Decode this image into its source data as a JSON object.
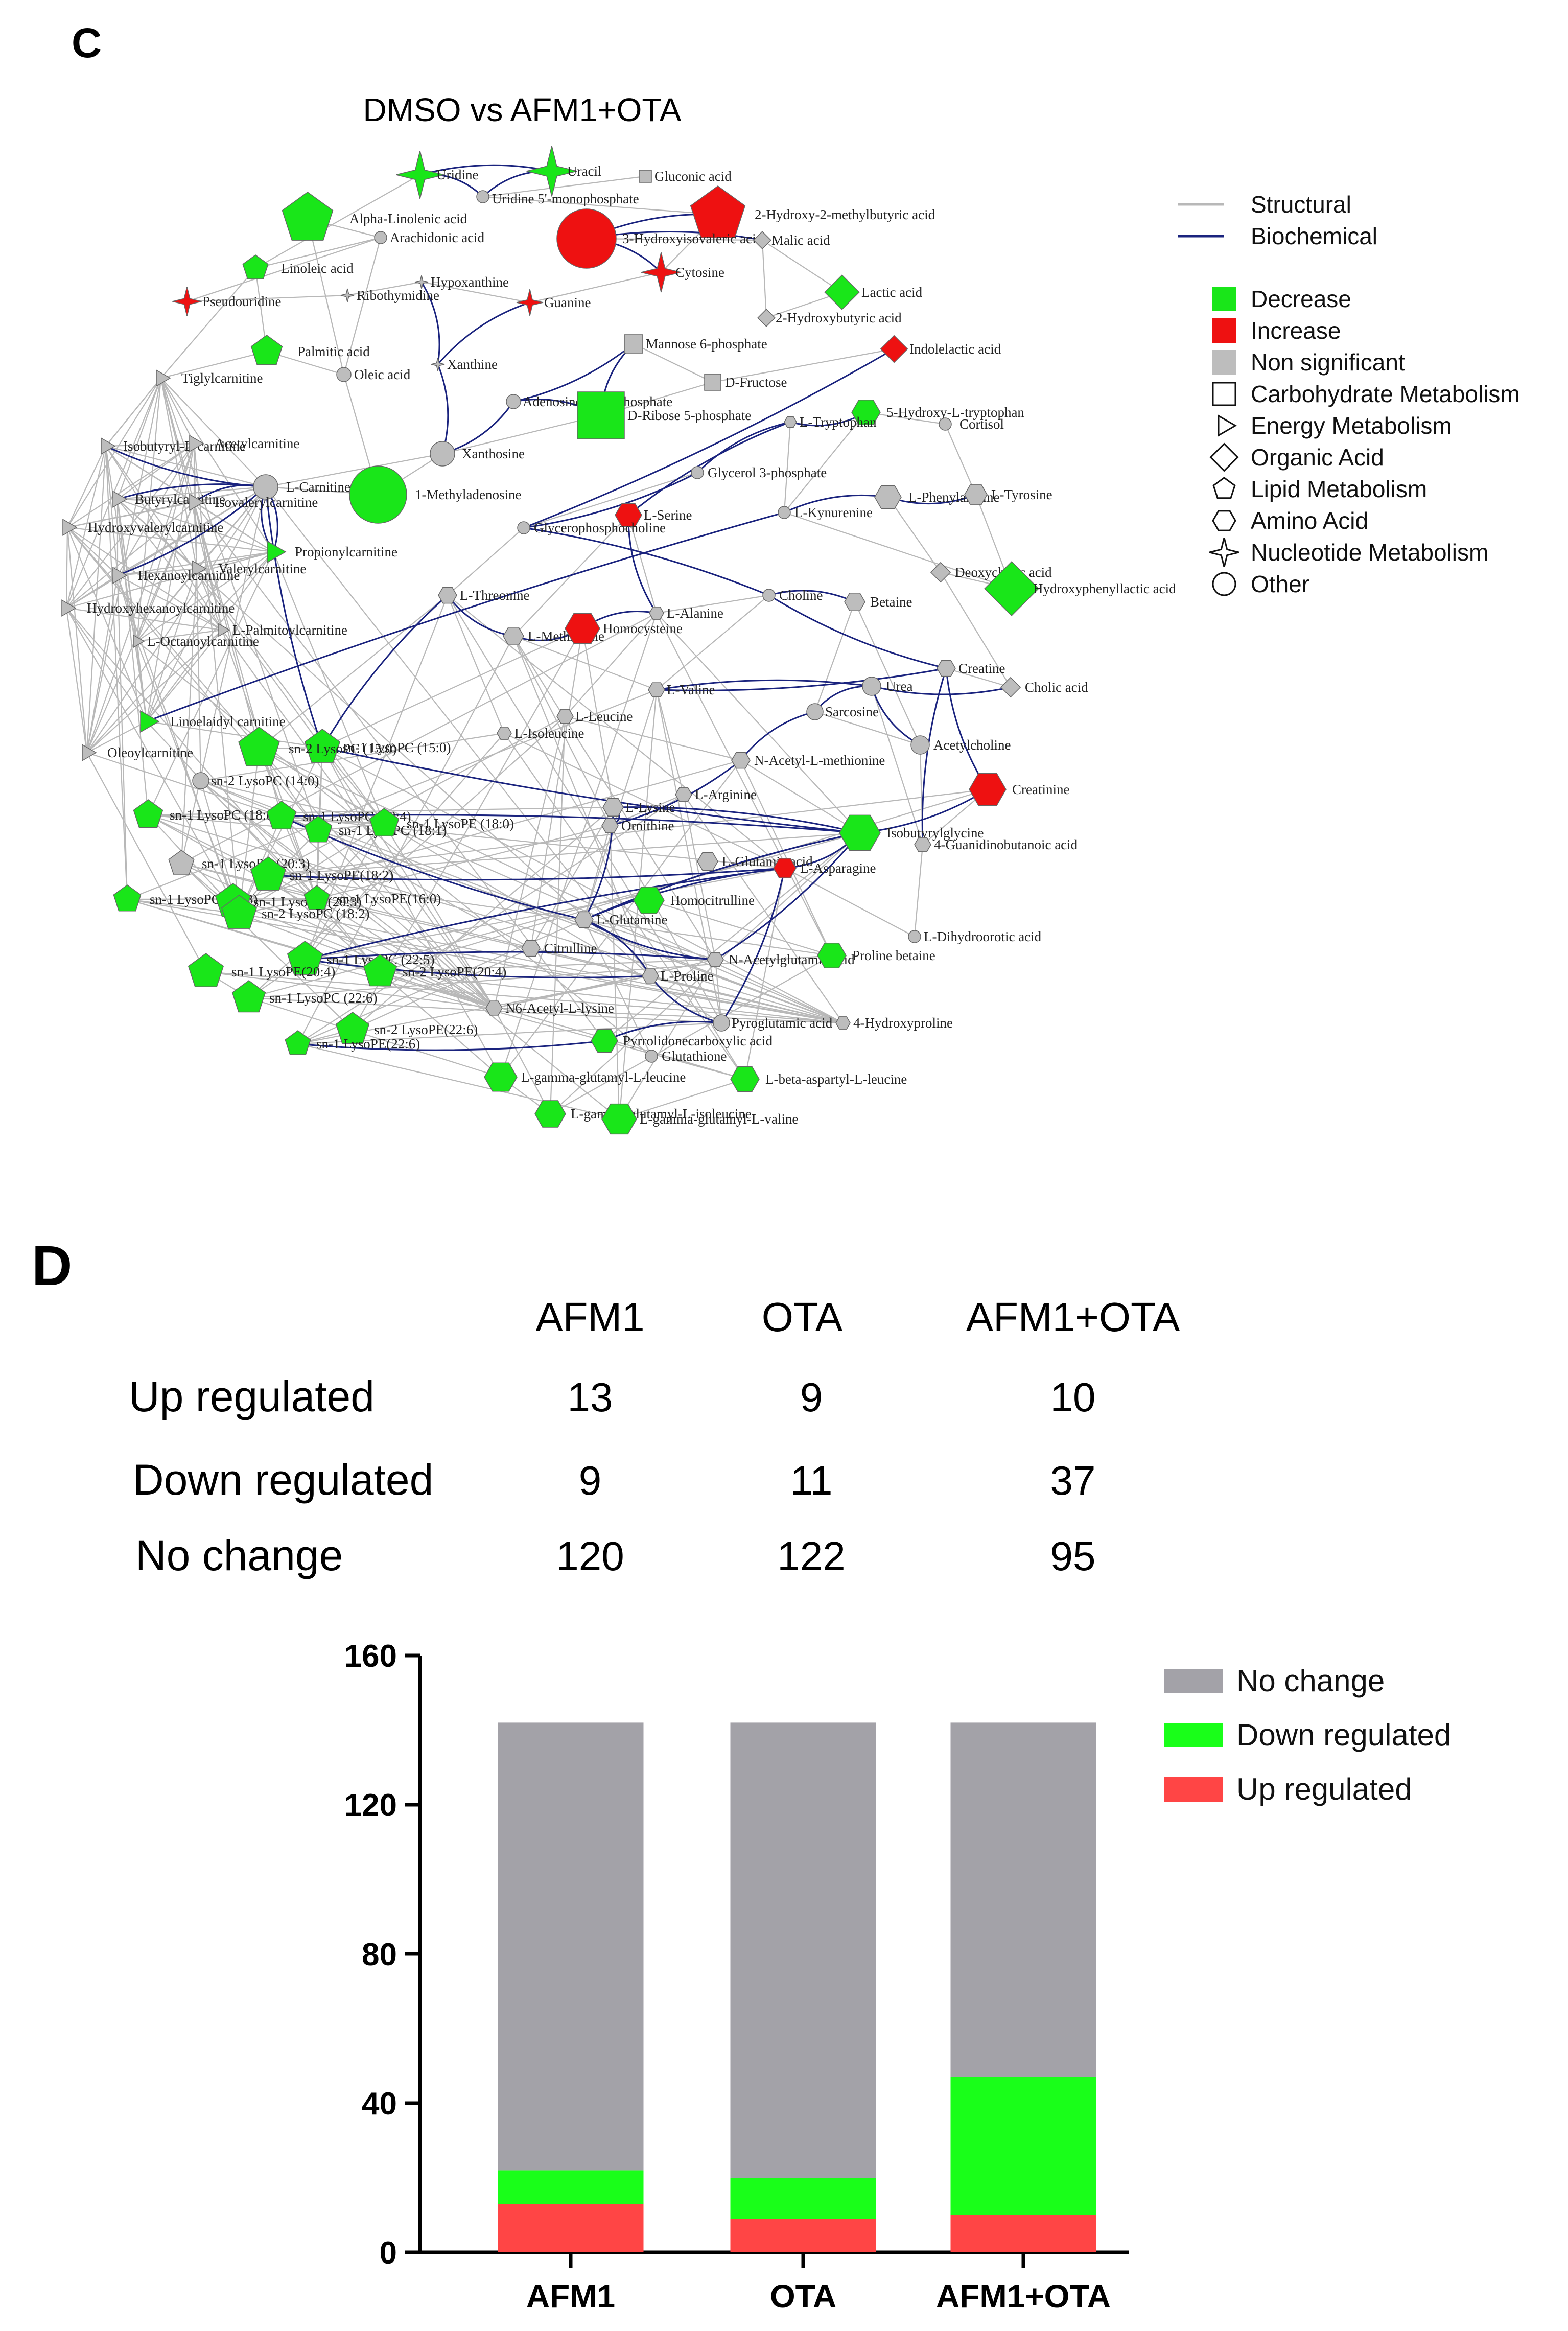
{
  "panel_c": {
    "letter": "C",
    "title": "DMSO vs AFM1+OTA",
    "legend": {
      "edges": [
        {
          "label": "Structural",
          "color": "#b8b8b8"
        },
        {
          "label": "Biochemical",
          "color": "#1a237e"
        }
      ],
      "colors": [
        {
          "label": "Decrease",
          "color": "#19e619"
        },
        {
          "label": "Increase",
          "color": "#ee1111"
        },
        {
          "label": "Non significant",
          "color": "#bdbdbd"
        }
      ],
      "shapes": [
        {
          "label": "Carbohydrate Metabolism",
          "shape": "square"
        },
        {
          "label": "Energy Metabolism",
          "shape": "triangle"
        },
        {
          "label": "Organic Acid",
          "shape": "diamond"
        },
        {
          "label": "Lipid Metabolism",
          "shape": "pentagon"
        },
        {
          "label": "Amino Acid",
          "shape": "hexagon"
        },
        {
          "label": "Nucleotide Metabolism",
          "shape": "star"
        },
        {
          "label": "Other",
          "shape": "circle"
        }
      ]
    },
    "nodes": [
      {
        "label": "Uridine",
        "status": "decrease",
        "shape": "star"
      },
      {
        "label": "Uracil",
        "status": "decrease",
        "shape": "star"
      },
      {
        "label": "Gluconic acid",
        "status": "ns",
        "shape": "square"
      },
      {
        "label": "Uridine 5'-monophosphate",
        "status": "ns",
        "shape": "circle"
      },
      {
        "label": "Alpha-Linolenic acid",
        "status": "decrease",
        "shape": "pentagon"
      },
      {
        "label": "Arachidonic acid",
        "status": "ns",
        "shape": "circle"
      },
      {
        "label": "2-Hydroxy-2-methylbutyric acid",
        "status": "increase",
        "shape": "pentagon"
      },
      {
        "label": "3-Hydroxyisovaleric acid",
        "status": "increase",
        "shape": "circle"
      },
      {
        "label": "Malic acid",
        "status": "ns",
        "shape": "diamond"
      },
      {
        "label": "Cytosine",
        "status": "increase",
        "shape": "star"
      },
      {
        "label": "Linoleic acid",
        "status": "decrease",
        "shape": "pentagon"
      },
      {
        "label": "Hypoxanthine",
        "status": "ns",
        "shape": "star"
      },
      {
        "label": "Ribothymidine",
        "status": "ns",
        "shape": "star"
      },
      {
        "label": "Pseudouridine",
        "status": "increase",
        "shape": "star"
      },
      {
        "label": "Guanine",
        "status": "increase",
        "shape": "star"
      },
      {
        "label": "Lactic acid",
        "status": "decrease",
        "shape": "diamond"
      },
      {
        "label": "2-Hydroxybutyric acid",
        "status": "ns",
        "shape": "diamond"
      },
      {
        "label": "Palmitic acid",
        "status": "decrease",
        "shape": "pentagon"
      },
      {
        "label": "Xanthine",
        "status": "ns",
        "shape": "star"
      },
      {
        "label": "Oleic acid",
        "status": "ns",
        "shape": "circle"
      },
      {
        "label": "Mannose 6-phosphate",
        "status": "ns",
        "shape": "square"
      },
      {
        "label": "Indolelactic acid",
        "status": "increase",
        "shape": "diamond"
      },
      {
        "label": "Tiglylcarnitine",
        "status": "ns",
        "shape": "triangle"
      },
      {
        "label": "D-Fructose",
        "status": "ns",
        "shape": "square"
      },
      {
        "label": "Adenosine monophosphate",
        "status": "ns",
        "shape": "circle"
      },
      {
        "label": "D-Ribose 5-phosphate",
        "status": "decrease",
        "shape": "square"
      },
      {
        "label": "5-Hydroxy-L-tryptophan",
        "status": "decrease",
        "shape": "hexagon"
      },
      {
        "label": "L-Tryptophan",
        "status": "ns",
        "shape": "hexagon"
      },
      {
        "label": "Cortisol",
        "status": "ns",
        "shape": "circle"
      },
      {
        "label": "Isobutyryl-L-carnitine",
        "status": "ns",
        "shape": "triangle"
      },
      {
        "label": "Acetylcarnitine",
        "status": "ns",
        "shape": "triangle"
      },
      {
        "label": "Xanthosine",
        "status": "ns",
        "shape": "circle"
      },
      {
        "label": "Glycerol 3-phosphate",
        "status": "ns",
        "shape": "circle"
      },
      {
        "label": "Butyrylcarnitine",
        "status": "ns",
        "shape": "triangle"
      },
      {
        "label": "L-Carnitine",
        "status": "ns",
        "shape": "circle"
      },
      {
        "label": "Isovalerylcarnitine",
        "status": "ns",
        "shape": "triangle"
      },
      {
        "label": "1-Methyladenosine",
        "status": "decrease",
        "shape": "circle"
      },
      {
        "label": "L-Phenylalanine",
        "status": "ns",
        "shape": "hexagon"
      },
      {
        "label": "L-Tyrosine",
        "status": "ns",
        "shape": "hexagon"
      },
      {
        "label": "L-Kynurenine",
        "status": "ns",
        "shape": "circle"
      },
      {
        "label": "L-Serine",
        "status": "increase",
        "shape": "hexagon"
      },
      {
        "label": "Hydroxyvalerylcarnitine",
        "status": "ns",
        "shape": "triangle"
      },
      {
        "label": "Glycerophosphocholine",
        "status": "ns",
        "shape": "circle"
      },
      {
        "label": "Propionylcarnitine",
        "status": "decrease",
        "shape": "triangle"
      },
      {
        "label": "Valerylcarnitine",
        "status": "ns",
        "shape": "triangle"
      },
      {
        "label": "Hexanoylcarnitine",
        "status": "ns",
        "shape": "triangle"
      },
      {
        "label": "Deoxycholic acid",
        "status": "ns",
        "shape": "diamond"
      },
      {
        "label": "Hydroxyphenyllactic acid",
        "status": "decrease",
        "shape": "diamond"
      },
      {
        "label": "L-Threonine",
        "status": "ns",
        "shape": "hexagon"
      },
      {
        "label": "Choline",
        "status": "ns",
        "shape": "circle"
      },
      {
        "label": "Betaine",
        "status": "ns",
        "shape": "hexagon"
      },
      {
        "label": "Hydroxyhexanoylcarnitine",
        "status": "ns",
        "shape": "triangle"
      },
      {
        "label": "L-Alanine",
        "status": "ns",
        "shape": "hexagon"
      },
      {
        "label": "L-Palmitoylcarnitine",
        "status": "ns",
        "shape": "triangle"
      },
      {
        "label": "L-Octanoylcarnitine",
        "status": "ns",
        "shape": "triangle"
      },
      {
        "label": "L-Methionine",
        "status": "ns",
        "shape": "hexagon"
      },
      {
        "label": "Homocysteine",
        "status": "increase",
        "shape": "hexagon"
      },
      {
        "label": "Creatine",
        "status": "ns",
        "shape": "hexagon"
      },
      {
        "label": "Urea",
        "status": "ns",
        "shape": "circle"
      },
      {
        "label": "Cholic acid",
        "status": "ns",
        "shape": "diamond"
      },
      {
        "label": "L-Valine",
        "status": "ns",
        "shape": "hexagon"
      },
      {
        "label": "Sarcosine",
        "status": "ns",
        "shape": "circle"
      },
      {
        "label": "Linoelaidyl carnitine",
        "status": "decrease",
        "shape": "triangle"
      },
      {
        "label": "L-Leucine",
        "status": "ns",
        "shape": "hexagon"
      },
      {
        "label": "L-Isoleucine",
        "status": "ns",
        "shape": "hexagon"
      },
      {
        "label": "Acetylcholine",
        "status": "ns",
        "shape": "circle"
      },
      {
        "label": "sn-1 LysoPC (15:0)",
        "status": "decrease",
        "shape": "pentagon"
      },
      {
        "label": "sn-2 LysoPC (15:0)",
        "status": "decrease",
        "shape": "pentagon"
      },
      {
        "label": "Oleoylcarnitine",
        "status": "ns",
        "shape": "triangle"
      },
      {
        "label": "N-Acetyl-L-methionine",
        "status": "ns",
        "shape": "hexagon"
      },
      {
        "label": "Creatinine",
        "status": "increase",
        "shape": "hexagon"
      },
      {
        "label": "sn-2 LysoPC (14:0)",
        "status": "ns",
        "shape": "circle"
      },
      {
        "label": "L-Arginine",
        "status": "ns",
        "shape": "hexagon"
      },
      {
        "label": "L-Lysine",
        "status": "ns",
        "shape": "hexagon"
      },
      {
        "label": "sn-1 LysoPC (18:0)",
        "status": "decrease",
        "shape": "pentagon"
      },
      {
        "label": "sn-1 LysoPC (20:4)",
        "status": "decrease",
        "shape": "pentagon"
      },
      {
        "label": "sn-1 LysoPC (18:1)",
        "status": "decrease",
        "shape": "pentagon"
      },
      {
        "label": "sn-1 LysoPE (18:0)",
        "status": "decrease",
        "shape": "pentagon"
      },
      {
        "label": "Ornithine",
        "status": "ns",
        "shape": "hexagon"
      },
      {
        "label": "Isobutyrylglycine",
        "status": "decrease",
        "shape": "hexagon"
      },
      {
        "label": "sn-1 LysoPC (20:3)",
        "status": "ns",
        "shape": "pentagon"
      },
      {
        "label": "4-Guanidinobutanoic acid",
        "status": "ns",
        "shape": "hexagon"
      },
      {
        "label": "L-Glutamic acid",
        "status": "ns",
        "shape": "hexagon"
      },
      {
        "label": "L-Asparagine",
        "status": "increase",
        "shape": "hexagon"
      },
      {
        "label": "sn-1 LysoPE(18:2)",
        "status": "decrease",
        "shape": "pentagon"
      },
      {
        "label": "sn-1 LysoPC (18:3)",
        "status": "decrease",
        "shape": "pentagon"
      },
      {
        "label": "sn-1 LysoPC (20:3)",
        "status": "decrease",
        "shape": "pentagon"
      },
      {
        "label": "sn-1 LysoPE(16:0)",
        "status": "decrease",
        "shape": "pentagon"
      },
      {
        "label": "Homocitrulline",
        "status": "decrease",
        "shape": "hexagon"
      },
      {
        "label": "sn-2 LysoPC (18:2)",
        "status": "decrease",
        "shape": "pentagon"
      },
      {
        "label": "L-Glutamine",
        "status": "ns",
        "shape": "hexagon"
      },
      {
        "label": "L-Dihydroorotic acid",
        "status": "ns",
        "shape": "circle"
      },
      {
        "label": "Citrulline",
        "status": "ns",
        "shape": "hexagon"
      },
      {
        "label": "N-Acetylglutamic acid",
        "status": "ns",
        "shape": "hexagon"
      },
      {
        "label": "Proline betaine",
        "status": "decrease",
        "shape": "hexagon"
      },
      {
        "label": "sn-1 LysoPC (22:5)",
        "status": "decrease",
        "shape": "pentagon"
      },
      {
        "label": "sn-2 LysoPE(20:4)",
        "status": "decrease",
        "shape": "pentagon"
      },
      {
        "label": "sn-1 LysoPE(20:4)",
        "status": "decrease",
        "shape": "pentagon"
      },
      {
        "label": "L-Proline",
        "status": "ns",
        "shape": "hexagon"
      },
      {
        "label": "sn-1 LysoPC (22:6)",
        "status": "decrease",
        "shape": "pentagon"
      },
      {
        "label": "N6-Acetyl-L-lysine",
        "status": "ns",
        "shape": "hexagon"
      },
      {
        "label": "Pyroglutamic acid",
        "status": "ns",
        "shape": "circle"
      },
      {
        "label": "4-Hydroxyproline",
        "status": "ns",
        "shape": "hexagon"
      },
      {
        "label": "sn-2 LysoPE(22:6)",
        "status": "decrease",
        "shape": "pentagon"
      },
      {
        "label": "Pyrrolidonecarboxylic acid",
        "status": "decrease",
        "shape": "hexagon"
      },
      {
        "label": "sn-1 LysoPE(22:6)",
        "status": "decrease",
        "shape": "pentagon"
      },
      {
        "label": "Glutathione",
        "status": "ns",
        "shape": "circle"
      },
      {
        "label": "L-gamma-glutamyl-L-leucine",
        "status": "decrease",
        "shape": "hexagon"
      },
      {
        "label": "L-beta-aspartyl-L-leucine",
        "status": "decrease",
        "shape": "hexagon"
      },
      {
        "label": "L-gamma-glutamyl-L-isoleucine",
        "status": "decrease",
        "shape": "hexagon"
      },
      {
        "label": "L-gamma-glutamyl-L-valine",
        "status": "decrease",
        "shape": "hexagon"
      }
    ]
  },
  "panel_d": {
    "letter": "D",
    "table": {
      "columns": [
        "AFM1",
        "OTA",
        "AFM1+OTA"
      ],
      "rows": [
        {
          "label": "Up regulated",
          "values": [
            "13",
            "9",
            "10"
          ]
        },
        {
          "label": "Down regulated",
          "values": [
            "9",
            "11",
            "37"
          ]
        },
        {
          "label": "No change",
          "values": [
            "120",
            "122",
            "95"
          ]
        }
      ]
    }
  },
  "colors": {
    "decrease": "#19e619",
    "increase": "#ee1111",
    "ns": "#bdbdbd",
    "up_bar": "#ff4545",
    "down_bar": "#19ff19",
    "nochange_bar": "#a3a2a8"
  },
  "chart_data": {
    "type": "bar",
    "stacked": true,
    "categories": [
      "AFM1",
      "OTA",
      "AFM1+OTA"
    ],
    "series": [
      {
        "name": "Up regulated",
        "values": [
          13,
          9,
          10
        ]
      },
      {
        "name": "Down regulated",
        "values": [
          9,
          11,
          37
        ]
      },
      {
        "name": "No change",
        "values": [
          120,
          122,
          95
        ]
      }
    ],
    "legend_order": [
      "No change",
      "Down regulated",
      "Up regulated"
    ],
    "yticks": [
      0,
      40,
      80,
      120,
      160
    ],
    "ylim": [
      0,
      160
    ],
    "title": "",
    "xlabel": "",
    "ylabel": "",
    "legend_position": "top-right"
  }
}
